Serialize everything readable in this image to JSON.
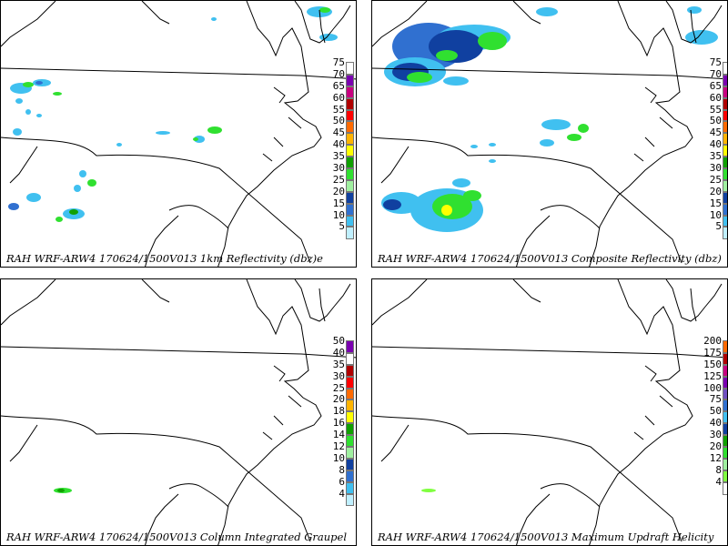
{
  "panels": [
    {
      "caption": "RAH WRF-ARW4 170624/1500V013  1km Reflectivity (dbz)e",
      "scale_labels": [
        "75",
        "70",
        "65",
        "60",
        "55",
        "50",
        "45",
        "40",
        "35",
        "30",
        "25",
        "20",
        "15",
        "10",
        "5"
      ],
      "scale_colors": [
        "#ffffff",
        "#7a00b0",
        "#c80080",
        "#b00000",
        "#ff0000",
        "#ff6a00",
        "#ffb400",
        "#ffff00",
        "#10a000",
        "#30e030",
        "#a0f0a0",
        "#1040a0",
        "#3070d0",
        "#40c0f0",
        "#c0f0ff"
      ],
      "echoes": "reflectivity_1km"
    },
    {
      "caption": "RAH WRF-ARW4 170624/1500V013  Composite Reflectivity (dbz)",
      "scale_labels": [
        "75",
        "70",
        "65",
        "60",
        "55",
        "50",
        "45",
        "40",
        "35",
        "30",
        "25",
        "20",
        "15",
        "10",
        "5"
      ],
      "scale_colors": [
        "#ffffff",
        "#7a00b0",
        "#c80080",
        "#b00000",
        "#ff0000",
        "#ff6a00",
        "#ffb400",
        "#ffff00",
        "#10a000",
        "#30e030",
        "#a0f0a0",
        "#1040a0",
        "#3070d0",
        "#40c0f0",
        "#c0f0ff"
      ],
      "echoes": "composite"
    },
    {
      "caption": "RAH WRF-ARW4 170624/1500V013  Column Integrated Graupel",
      "scale_labels": [
        "50",
        "40",
        "35",
        "30",
        "25",
        "20",
        "18",
        "16",
        "14",
        "12",
        "10",
        "8",
        "6",
        "4"
      ],
      "scale_colors": [
        "#7a00b0",
        "#ffffff",
        "#b00000",
        "#ff0000",
        "#ff6a00",
        "#ffb400",
        "#ffff00",
        "#10a000",
        "#30e030",
        "#a0f0a0",
        "#1040a0",
        "#3070d0",
        "#40c0f0",
        "#c0f0ff"
      ],
      "echoes": "graupel"
    },
    {
      "caption": "RAH WRF-ARW4 170624/1500V013  Maximum Updraft Helicity",
      "scale_labels": [
        "200",
        "175",
        "150",
        "125",
        "100",
        "75",
        "50",
        "40",
        "30",
        "20",
        "12",
        "8",
        "4"
      ],
      "scale_colors": [
        "#ff6a00",
        "#b00000",
        "#c80080",
        "#7a00b0",
        "#7050c0",
        "#3070d0",
        "#40c0f0",
        "#1040a0",
        "#10a000",
        "#30e030",
        "#a0f0a0",
        "#80ff40",
        "#ffffff"
      ],
      "echoes": "helicity"
    }
  ]
}
